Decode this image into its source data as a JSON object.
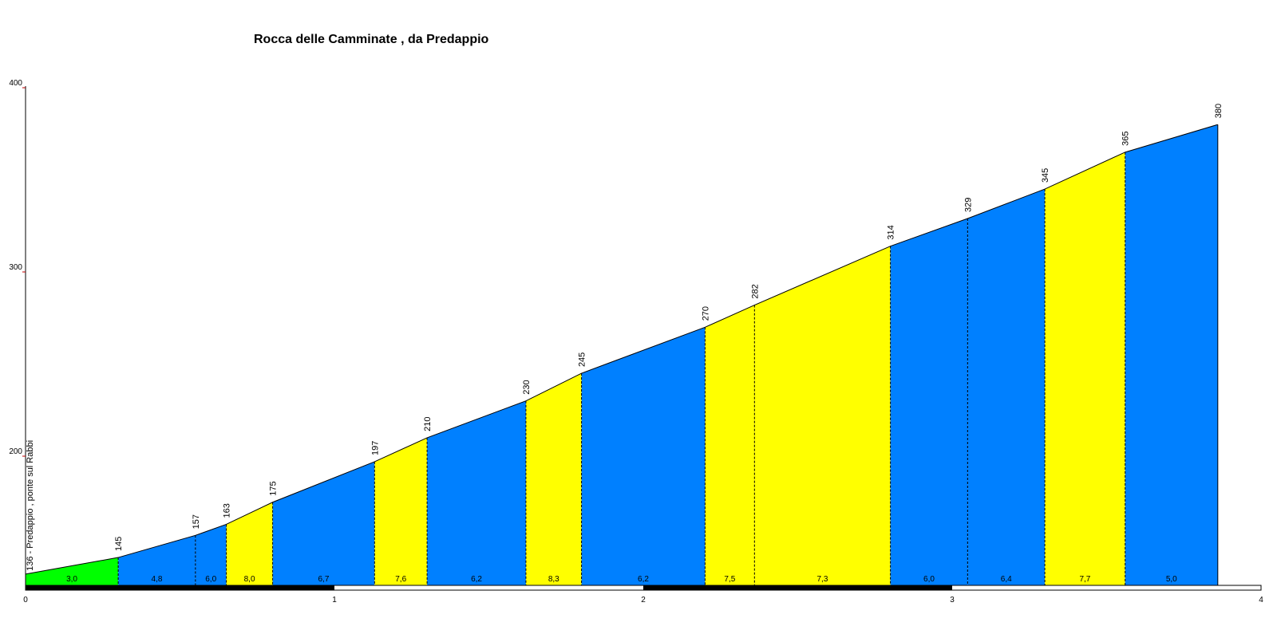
{
  "chart_data": {
    "type": "area",
    "title": "Rocca delle Camminate , da Predappio",
    "xlabel": "",
    "ylabel": "",
    "xlim": [
      0,
      4
    ],
    "ylim": [
      136,
      400
    ],
    "x_ticks": [
      "0",
      "1",
      "2",
      "3",
      "4"
    ],
    "y_ticks": [
      "200",
      "300",
      "400"
    ],
    "start_label": "136 - Predappio , ponte sul Rabbi",
    "points": [
      {
        "x": 0.0,
        "y": 136
      },
      {
        "x": 0.3,
        "y": 145,
        "label": "145"
      },
      {
        "x": 0.55,
        "y": 157,
        "label": "157"
      },
      {
        "x": 0.65,
        "y": 163,
        "label": "163"
      },
      {
        "x": 0.8,
        "y": 175,
        "label": "175"
      },
      {
        "x": 1.13,
        "y": 197,
        "label": "197"
      },
      {
        "x": 1.3,
        "y": 210,
        "label": "210"
      },
      {
        "x": 1.62,
        "y": 230,
        "label": "230"
      },
      {
        "x": 1.8,
        "y": 245,
        "label": "245"
      },
      {
        "x": 2.2,
        "y": 270,
        "label": "270"
      },
      {
        "x": 2.36,
        "y": 282,
        "label": "282"
      },
      {
        "x": 2.8,
        "y": 314,
        "label": "314"
      },
      {
        "x": 3.05,
        "y": 329,
        "label": "329"
      },
      {
        "x": 3.3,
        "y": 345,
        "label": "345"
      },
      {
        "x": 3.56,
        "y": 365,
        "label": "365"
      },
      {
        "x": 3.86,
        "y": 380,
        "label": "380"
      }
    ],
    "segments": [
      {
        "grade": "3,0",
        "color": "#00ff00"
      },
      {
        "grade": "4,8",
        "color": "#0080ff"
      },
      {
        "grade": "6,0",
        "color": "#0080ff"
      },
      {
        "grade": "8,0",
        "color": "#ffff00"
      },
      {
        "grade": "6,7",
        "color": "#0080ff"
      },
      {
        "grade": "7,6",
        "color": "#ffff00"
      },
      {
        "grade": "6,2",
        "color": "#0080ff"
      },
      {
        "grade": "8,3",
        "color": "#ffff00"
      },
      {
        "grade": "6,2",
        "color": "#0080ff"
      },
      {
        "grade": "7,5",
        "color": "#ffff00"
      },
      {
        "grade": "7,3",
        "color": "#ffff00"
      },
      {
        "grade": "6,0",
        "color": "#0080ff"
      },
      {
        "grade": "6,4",
        "color": "#0080ff"
      },
      {
        "grade": "7,7",
        "color": "#ffff00"
      },
      {
        "grade": "5,0",
        "color": "#0080ff"
      }
    ],
    "grid": false,
    "legend": "none"
  }
}
